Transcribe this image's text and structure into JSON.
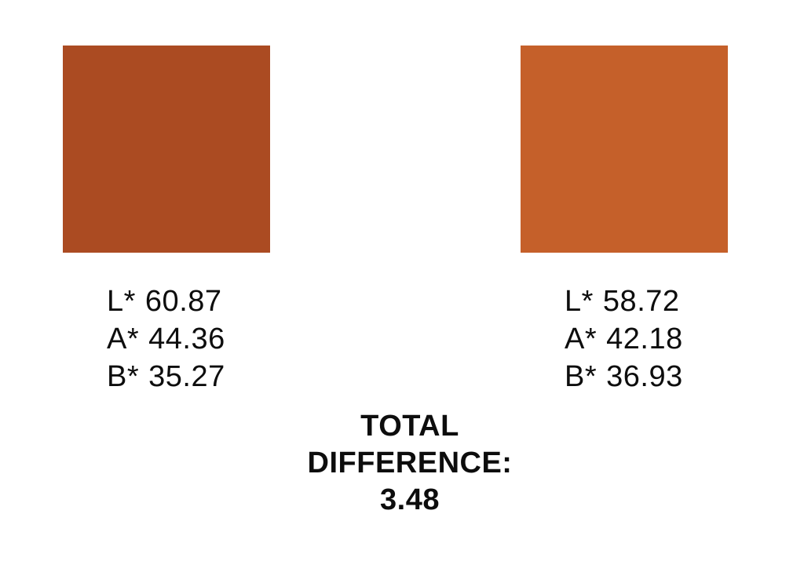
{
  "page": {
    "background_color": "#ffffff",
    "text_color": "#0d0d0d"
  },
  "samples": [
    {
      "id": "left",
      "swatch_color": "#AB4B22",
      "lab": [
        {
          "label": "L*",
          "value": "60.87"
        },
        {
          "label": "A*",
          "value": "44.36"
        },
        {
          "label": "B*",
          "value": "35.27"
        }
      ]
    },
    {
      "id": "right",
      "swatch_color": "#C5602A",
      "lab": [
        {
          "label": "L*",
          "value": "58.72"
        },
        {
          "label": "A*",
          "value": "42.18"
        },
        {
          "label": "B*",
          "value": "36.93"
        }
      ]
    }
  ],
  "total_difference": {
    "label_lines": [
      "TOTAL",
      "DIFFERENCE:"
    ],
    "value": "3.48"
  }
}
